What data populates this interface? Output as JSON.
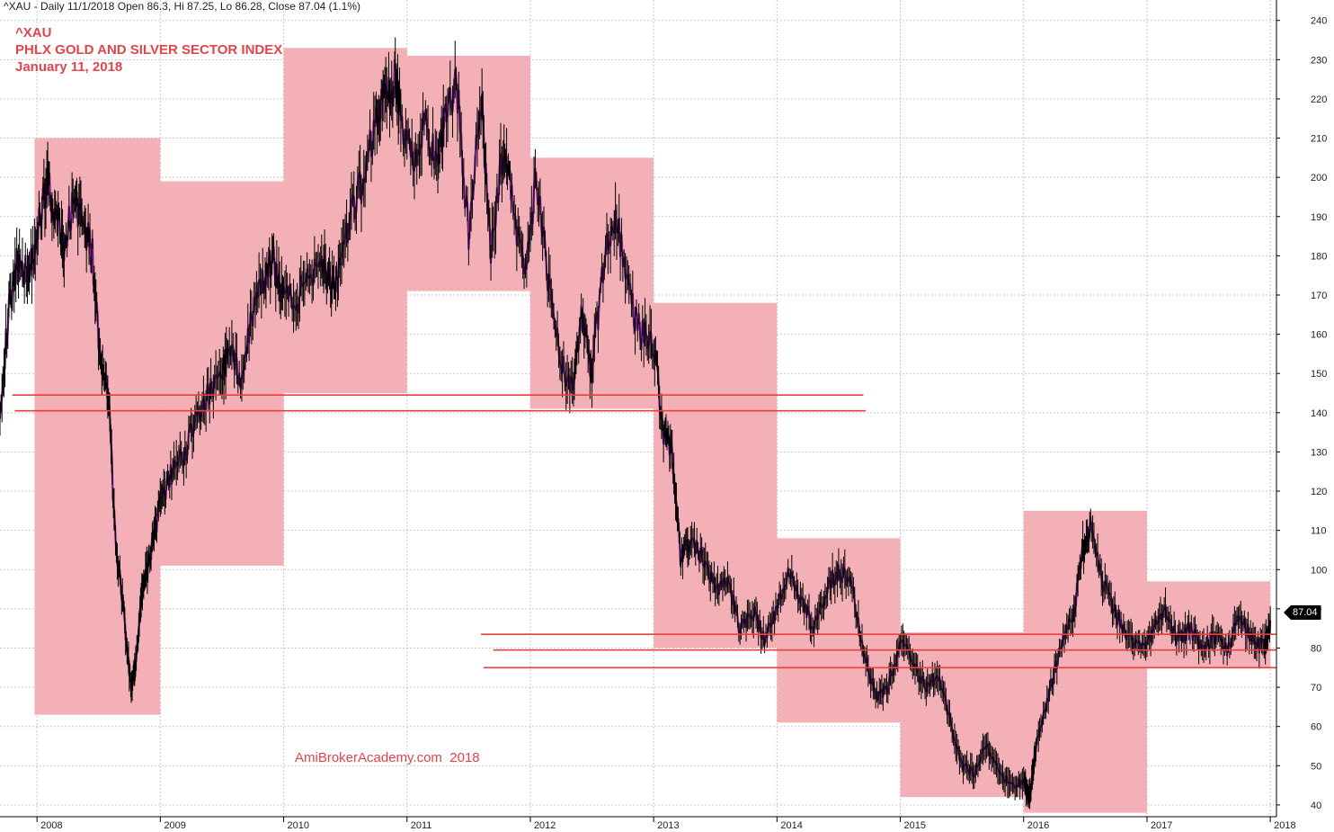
{
  "header": {
    "info_line": "^XAU - Daily 11/1/2018 Open 86.3, Hi 87.25, Lo 86.28, Close 87.04 (1.1%)"
  },
  "overlay": {
    "ticker": "^XAU",
    "name": "PHLX GOLD AND SILVER SECTOR INDEX",
    "date": "January 11, 2018",
    "watermark": "AmiBrokerAcademy.com  2018"
  },
  "last_price_label": "87.04",
  "colors": {
    "background": "#ffffff",
    "price_bar": "#000000",
    "price_trend": "#7b1f8f",
    "zone_fill": "#f2a9af",
    "support_line": "#e8403f",
    "title_text": "#e0454b",
    "grid": "#c8c8c8"
  },
  "chart_data": {
    "type": "line",
    "title": "PHLX GOLD AND SILVER SECTOR INDEX",
    "subtitle": "January 11, 2018",
    "xlabel": "",
    "ylabel": "",
    "grid": true,
    "xlim": [
      2007.7,
      2018.05
    ],
    "ylim": [
      37,
      242
    ],
    "x_ticks": [
      "2008",
      "2009",
      "2010",
      "2011",
      "2012",
      "2013",
      "2014",
      "2015",
      "2016",
      "2017",
      "2018"
    ],
    "y_ticks": [
      40,
      50,
      60,
      70,
      80,
      90,
      100,
      110,
      120,
      130,
      140,
      150,
      160,
      170,
      180,
      190,
      200,
      210,
      220,
      230,
      240
    ],
    "series": [
      {
        "x": [
          2007.7,
          2007.78,
          2007.85,
          2007.93,
          2008.0,
          2008.08,
          2008.15,
          2008.22,
          2008.3,
          2008.38,
          2008.45,
          2008.52,
          2008.58,
          2008.63,
          2008.7,
          2008.76,
          2008.8,
          2008.85,
          2008.9,
          2008.95,
          2009.02,
          2009.1,
          2009.2,
          2009.3,
          2009.4,
          2009.5,
          2009.55,
          2009.65,
          2009.75,
          2009.85,
          2009.92,
          2010.0,
          2010.1,
          2010.2,
          2010.3,
          2010.38,
          2010.45,
          2010.55,
          2010.65,
          2010.75,
          2010.82,
          2010.9,
          2010.95,
          2011.05,
          2011.15,
          2011.25,
          2011.3,
          2011.4,
          2011.5,
          2011.6,
          2011.68,
          2011.78,
          2011.85,
          2011.95,
          2012.05,
          2012.15,
          2012.25,
          2012.35,
          2012.42,
          2012.5,
          2012.6,
          2012.7,
          2012.8,
          2012.9,
          2013.0,
          2013.08,
          2013.15,
          2013.22,
          2013.3,
          2013.4,
          2013.5,
          2013.6,
          2013.7,
          2013.8,
          2013.9,
          2014.0,
          2014.1,
          2014.2,
          2014.3,
          2014.4,
          2014.5,
          2014.6,
          2014.7,
          2014.8,
          2014.9,
          2015.0,
          2015.1,
          2015.2,
          2015.3,
          2015.4,
          2015.5,
          2015.6,
          2015.7,
          2015.8,
          2015.9,
          2016.0,
          2016.05,
          2016.1,
          2016.2,
          2016.3,
          2016.4,
          2016.48,
          2016.55,
          2016.65,
          2016.75,
          2016.85,
          2016.95,
          2017.05,
          2017.15,
          2017.25,
          2017.35,
          2017.45,
          2017.55,
          2017.65,
          2017.75,
          2017.85,
          2017.95,
          2018.0
        ],
        "y": [
          142,
          168,
          180,
          175,
          185,
          200,
          190,
          182,
          195,
          188,
          180,
          150,
          145,
          110,
          90,
          70,
          75,
          95,
          100,
          110,
          118,
          125,
          130,
          140,
          145,
          150,
          155,
          150,
          165,
          175,
          178,
          170,
          168,
          175,
          180,
          172,
          175,
          190,
          200,
          215,
          220,
          225,
          215,
          205,
          215,
          200,
          215,
          225,
          185,
          220,
          180,
          208,
          195,
          175,
          200,
          172,
          152,
          148,
          165,
          150,
          180,
          190,
          170,
          160,
          158,
          135,
          130,
          102,
          108,
          102,
          95,
          98,
          85,
          90,
          82,
          90,
          100,
          92,
          85,
          95,
          100,
          97,
          80,
          68,
          70,
          82,
          76,
          70,
          73,
          62,
          50,
          48,
          55,
          48,
          45,
          46,
          42,
          55,
          68,
          80,
          88,
          105,
          112,
          96,
          88,
          82,
          80,
          84,
          90,
          82,
          85,
          80,
          83,
          80,
          88,
          82,
          80,
          87
        ]
      }
    ],
    "shaded_zones": [
      {
        "from": 2007.98,
        "to": 2009.0,
        "low": 63,
        "high": 210
      },
      {
        "from": 2009.0,
        "to": 2010.0,
        "low": 101,
        "high": 199
      },
      {
        "from": 2010.0,
        "to": 2011.0,
        "low": 145,
        "high": 233
      },
      {
        "from": 2011.0,
        "to": 2012.0,
        "low": 171,
        "high": 231
      },
      {
        "from": 2012.0,
        "to": 2013.0,
        "low": 141,
        "high": 205
      },
      {
        "from": 2013.0,
        "to": 2014.0,
        "low": 80,
        "high": 168
      },
      {
        "from": 2014.0,
        "to": 2015.0,
        "low": 61,
        "high": 108
      },
      {
        "from": 2015.0,
        "to": 2016.0,
        "low": 42,
        "high": 84
      },
      {
        "from": 2016.0,
        "to": 2017.0,
        "low": 38,
        "high": 115
      },
      {
        "from": 2017.0,
        "to": 2018.0,
        "low": 75,
        "high": 97
      }
    ],
    "horizontal_lines": [
      {
        "from": 2007.8,
        "to": 2014.7,
        "y": 144.5
      },
      {
        "from": 2007.82,
        "to": 2014.72,
        "y": 140.5
      },
      {
        "from": 2011.6,
        "to": 2018.05,
        "y": 83.5
      },
      {
        "from": 2011.7,
        "to": 2018.05,
        "y": 79.5
      },
      {
        "from": 2011.62,
        "to": 2018.05,
        "y": 75
      }
    ],
    "last_value": 87.04
  }
}
